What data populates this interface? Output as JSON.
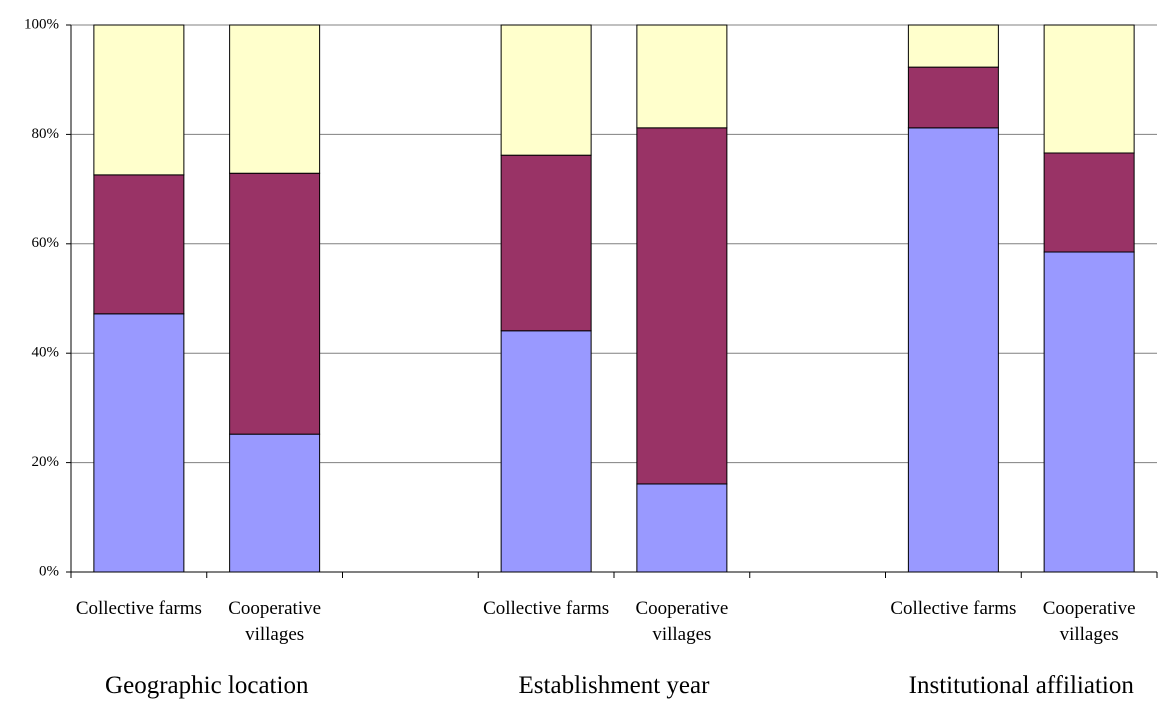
{
  "chart_data": {
    "type": "stacked_bar_percent",
    "categories": [
      "Collective farms",
      "Cooperative villages",
      null,
      "Collective farms",
      "Cooperative villages",
      null,
      "Collective farms",
      "Cooperative villages"
    ],
    "groups": [
      "Geographic location",
      "Establishment year",
      "Institutional affiliation"
    ],
    "series": [
      {
        "color": "#9999ff",
        "values": [
          47.2,
          25.2,
          null,
          44.1,
          16.1,
          null,
          81.2,
          58.5
        ]
      },
      {
        "color": "#993366",
        "values": [
          25.4,
          47.7,
          null,
          32.1,
          65.1,
          null,
          11.1,
          18.1
        ]
      },
      {
        "color": "#ffffcc",
        "values": [
          27.4,
          27.1,
          null,
          23.8,
          18.8,
          null,
          7.7,
          23.4
        ]
      }
    ],
    "ylim": [
      0,
      100
    ],
    "yticks": [
      {
        "value": 0,
        "label": "0%"
      },
      {
        "value": 20,
        "label": "20%"
      },
      {
        "value": 40,
        "label": "40%"
      },
      {
        "value": 60,
        "label": "60%"
      },
      {
        "value": 80,
        "label": "80%"
      },
      {
        "value": 100,
        "label": "100%"
      }
    ],
    "grid": true
  }
}
